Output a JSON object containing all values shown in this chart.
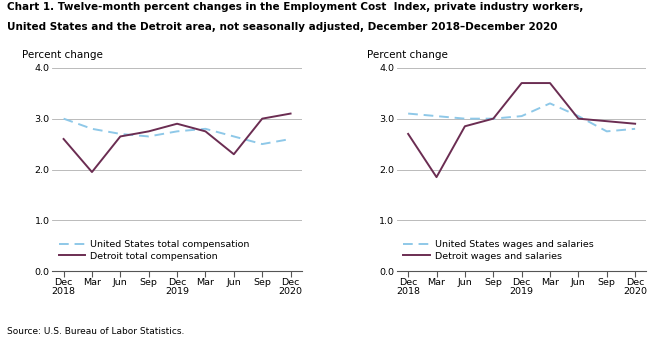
{
  "title_line1": "Chart 1. Twelve-month percent changes in the Employment Cost  Index, private industry workers,",
  "title_line2": "United States and the Detroit area, not seasonally adjusted, December 2018–December 2020",
  "source": "Source: U.S. Bureau of Labor Statistics.",
  "ylabel": "Percent change",
  "x_labels": [
    "Dec\n2018",
    "Mar",
    "Jun",
    "Sep",
    "Dec\n2019",
    "Mar",
    "Jun",
    "Sep",
    "Dec\n2020"
  ],
  "ylim": [
    0.0,
    4.0
  ],
  "yticks": [
    0.0,
    1.0,
    2.0,
    3.0,
    4.0
  ],
  "left_chart": {
    "us_total_comp": [
      3.0,
      2.8,
      2.7,
      2.65,
      2.75,
      2.8,
      2.65,
      2.5,
      2.6
    ],
    "detroit_total_comp": [
      2.6,
      1.95,
      2.65,
      2.75,
      2.9,
      2.75,
      2.3,
      3.0,
      3.1
    ],
    "legend1": "United States total compensation",
    "legend2": "Detroit total compensation"
  },
  "right_chart": {
    "us_wages_salaries": [
      3.1,
      3.05,
      3.0,
      3.0,
      3.05,
      3.3,
      3.05,
      2.75,
      2.8
    ],
    "detroit_wages_salaries": [
      2.7,
      1.85,
      2.85,
      3.0,
      3.7,
      3.7,
      3.0,
      2.95,
      2.9
    ],
    "legend1": "United States wages and salaries",
    "legend2": "Detroit wages and salaries"
  },
  "us_color": "#8EC8E8",
  "detroit_color": "#6B2D52",
  "linewidth": 1.4,
  "title_fontsize": 7.5,
  "tick_fontsize": 6.8,
  "legend_fontsize": 6.8,
  "ylabel_fontsize": 7.5
}
